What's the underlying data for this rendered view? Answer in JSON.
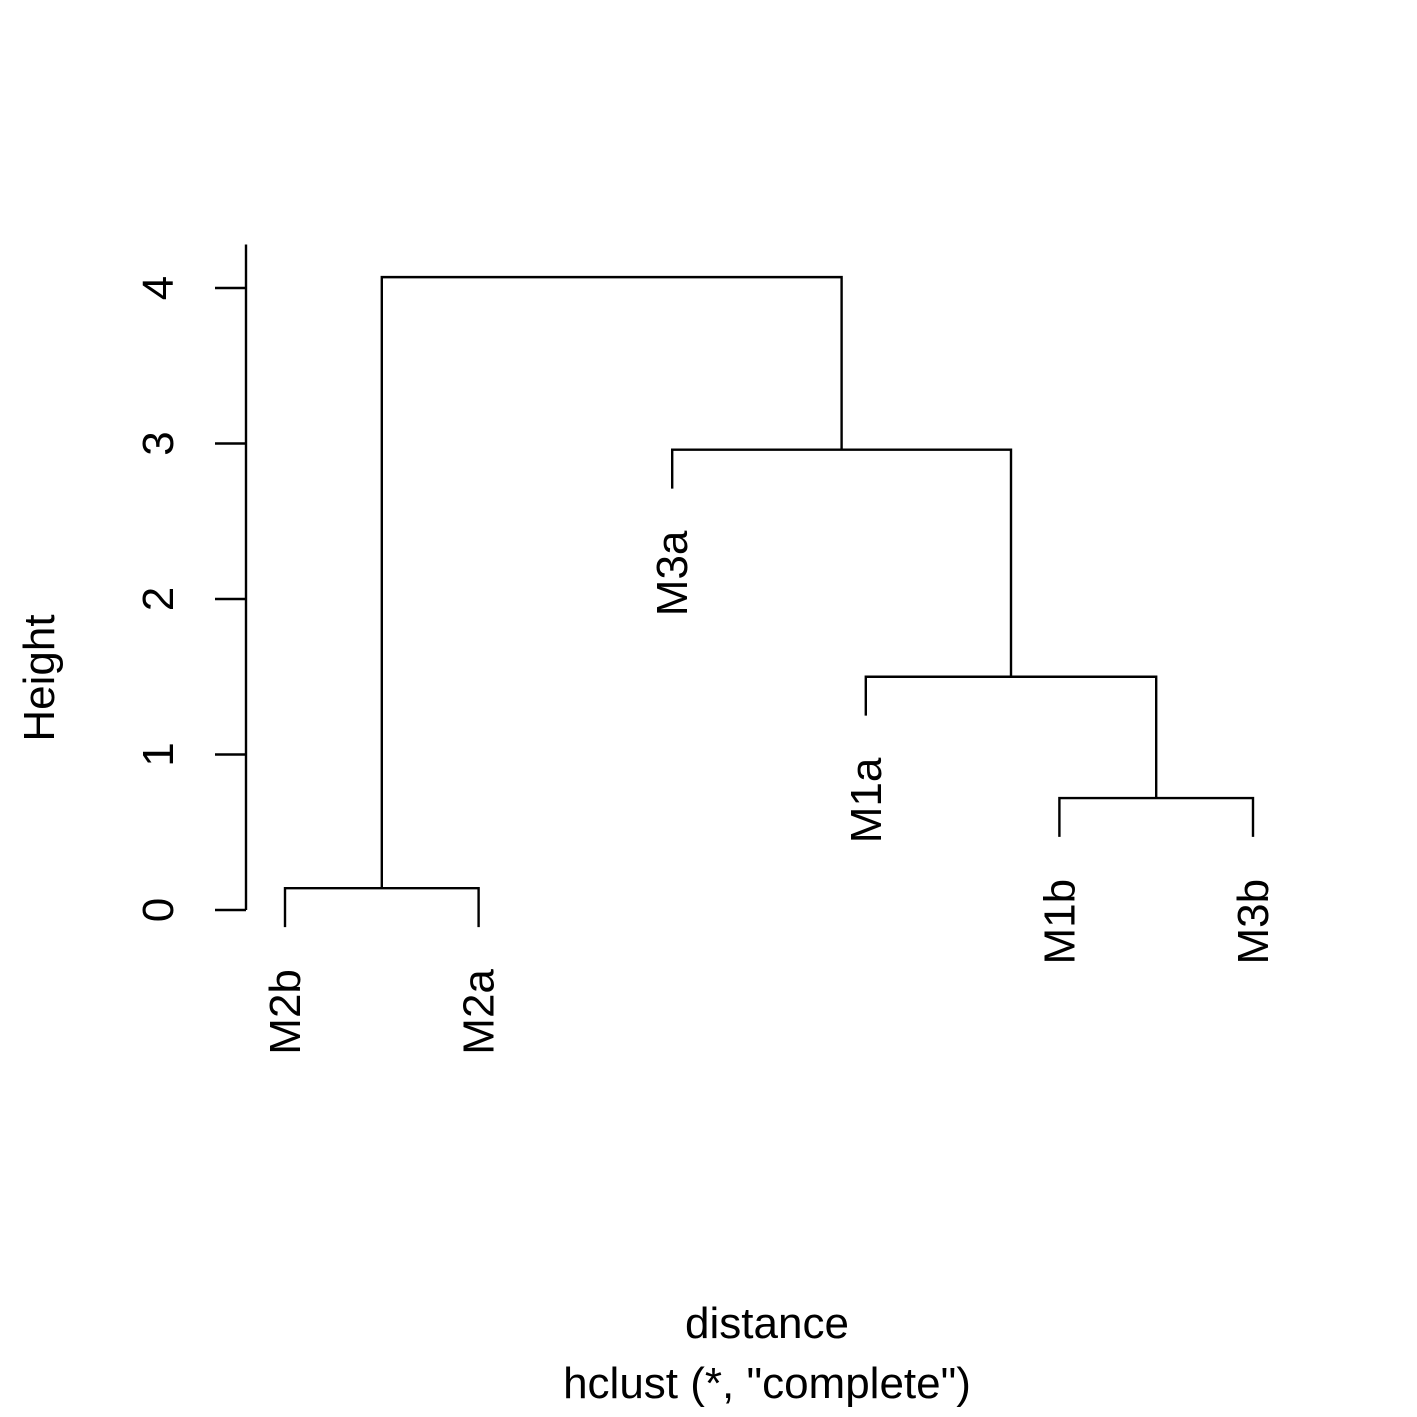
{
  "chart_data": {
    "type": "dendrogram",
    "method": "complete",
    "ylabel": "Height",
    "xlabel": "distance",
    "subtitle": "hclust (*, \"complete\")",
    "ylim": [
      0,
      4
    ],
    "yticks": [
      "0",
      "1",
      "2",
      "3",
      "4"
    ],
    "leaves": [
      "M2b",
      "M2a",
      "M3a",
      "M1a",
      "M1b",
      "M3b"
    ],
    "merges": [
      {
        "left": "M2b",
        "right": "M2a",
        "height": 0.14
      },
      {
        "left": "M1b",
        "right": "M3b",
        "height": 0.72
      },
      {
        "left": "M1a",
        "right": 2,
        "height": 1.5
      },
      {
        "left": "M3a",
        "right": 3,
        "height": 2.96
      },
      {
        "left": 1,
        "right": 4,
        "height": 4.07
      }
    ]
  },
  "colors": {
    "line": "#000000",
    "text": "#000000",
    "background": "#ffffff"
  }
}
